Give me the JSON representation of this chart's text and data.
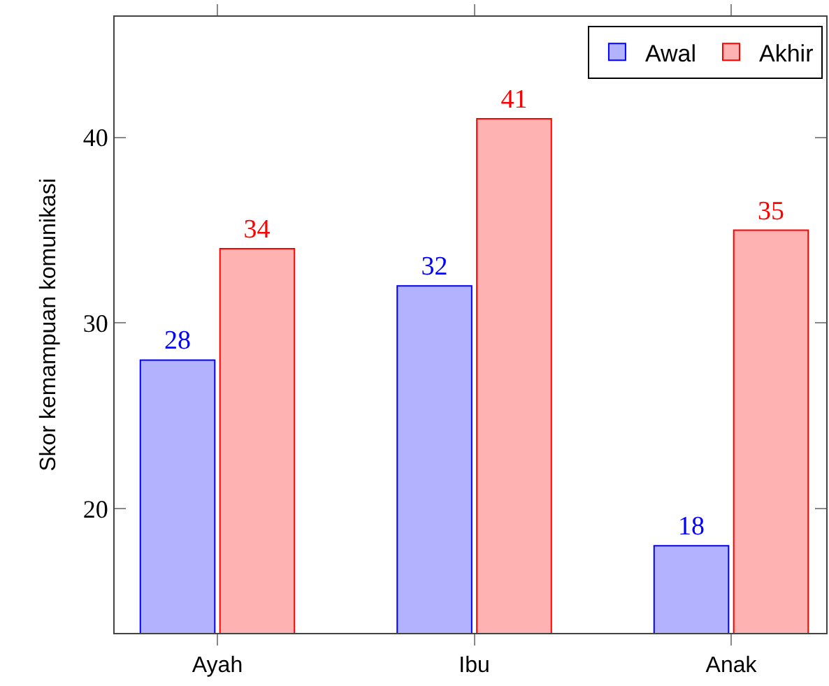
{
  "chart_data": {
    "type": "bar",
    "ylabel": "Skor kemampuan komunikasi",
    "categories": [
      "Ayah",
      "Ibu",
      "Anak"
    ],
    "series": [
      {
        "name": "Awal",
        "color": "#0000ff",
        "values": [
          28,
          32,
          18
        ]
      },
      {
        "name": "Akhir",
        "color": "#ff0000",
        "values": [
          34,
          41,
          35
        ]
      }
    ],
    "ylim": [
      13.3,
      46.5
    ],
    "yticks": [
      20,
      30,
      40
    ],
    "data_labels": true,
    "legend": "top right"
  }
}
